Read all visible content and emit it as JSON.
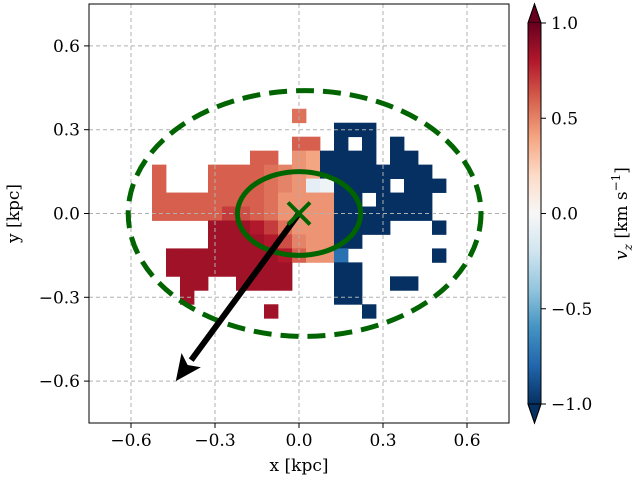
{
  "chart_data": {
    "type": "heatmap",
    "xlabel": "x [kpc]",
    "ylabel": "y [kpc]",
    "xlim": [
      -0.75,
      0.75
    ],
    "ylim": [
      -0.75,
      0.75
    ],
    "xticks": [
      -0.6,
      -0.3,
      0.0,
      0.3,
      0.6
    ],
    "yticks": [
      -0.6,
      -0.3,
      0.0,
      0.3,
      0.6
    ],
    "xtick_labels": [
      "−0.6",
      "−0.3",
      "0.0",
      "0.3",
      "0.6"
    ],
    "ytick_labels": [
      "−0.6",
      "−0.3",
      "0.0",
      "0.3",
      "0.6"
    ],
    "grid": true,
    "bin_size": 0.05,
    "colorbar": {
      "label": "v_z [km s⁻¹]",
      "label_main": "v",
      "label_sub": "z",
      "label_units": " [km s",
      "label_exp": "−1",
      "label_close": "]",
      "vmin": -1.0,
      "vmax": 1.0,
      "ticks": [
        -1.0,
        -0.5,
        0.0,
        0.5,
        1.0
      ],
      "tick_labels": [
        "−1.0",
        "−0.5",
        "0.0",
        "0.5",
        "1.0"
      ],
      "colormap": "RdBu_r",
      "extend": "both"
    },
    "cells": [
      {
        "x": 0.0,
        "y": 0.35,
        "v": 0.55
      },
      {
        "x": 0.15,
        "y": 0.3,
        "v": -1.0
      },
      {
        "x": 0.2,
        "y": 0.3,
        "v": -1.0
      },
      {
        "x": 0.25,
        "y": 0.3,
        "v": -1.0
      },
      {
        "x": 0.0,
        "y": 0.25,
        "v": 0.6
      },
      {
        "x": 0.05,
        "y": 0.25,
        "v": 0.6
      },
      {
        "x": 0.15,
        "y": 0.25,
        "v": -1.0
      },
      {
        "x": 0.25,
        "y": 0.25,
        "v": -1.0
      },
      {
        "x": 0.35,
        "y": 0.25,
        "v": -1.0
      },
      {
        "x": -0.15,
        "y": 0.2,
        "v": 0.6
      },
      {
        "x": -0.1,
        "y": 0.2,
        "v": 0.6
      },
      {
        "x": 0.0,
        "y": 0.2,
        "v": 0.45
      },
      {
        "x": 0.05,
        "y": 0.2,
        "v": 0.4
      },
      {
        "x": 0.1,
        "y": 0.2,
        "v": -1.0
      },
      {
        "x": 0.15,
        "y": 0.2,
        "v": -1.0
      },
      {
        "x": 0.2,
        "y": 0.2,
        "v": -1.0
      },
      {
        "x": 0.25,
        "y": 0.2,
        "v": -1.0
      },
      {
        "x": 0.35,
        "y": 0.2,
        "v": -1.0
      },
      {
        "x": 0.4,
        "y": 0.2,
        "v": -1.0
      },
      {
        "x": -0.5,
        "y": 0.15,
        "v": 0.6
      },
      {
        "x": -0.3,
        "y": 0.15,
        "v": 0.6
      },
      {
        "x": -0.25,
        "y": 0.15,
        "v": 0.6
      },
      {
        "x": -0.2,
        "y": 0.15,
        "v": 0.6
      },
      {
        "x": -0.15,
        "y": 0.15,
        "v": 0.6
      },
      {
        "x": -0.1,
        "y": 0.15,
        "v": 0.55
      },
      {
        "x": -0.05,
        "y": 0.15,
        "v": 0.5
      },
      {
        "x": 0.0,
        "y": 0.15,
        "v": 0.45
      },
      {
        "x": 0.05,
        "y": 0.15,
        "v": 0.4
      },
      {
        "x": 0.1,
        "y": 0.15,
        "v": -1.0
      },
      {
        "x": 0.15,
        "y": 0.15,
        "v": -1.0
      },
      {
        "x": 0.2,
        "y": 0.15,
        "v": -1.0
      },
      {
        "x": 0.25,
        "y": 0.15,
        "v": -1.0
      },
      {
        "x": 0.3,
        "y": 0.15,
        "v": -1.0
      },
      {
        "x": 0.35,
        "y": 0.15,
        "v": -1.0
      },
      {
        "x": 0.4,
        "y": 0.15,
        "v": -1.0
      },
      {
        "x": 0.45,
        "y": 0.15,
        "v": -1.0
      },
      {
        "x": -0.5,
        "y": 0.1,
        "v": 0.6
      },
      {
        "x": -0.3,
        "y": 0.1,
        "v": 0.6
      },
      {
        "x": -0.25,
        "y": 0.1,
        "v": 0.6
      },
      {
        "x": -0.2,
        "y": 0.1,
        "v": 0.6
      },
      {
        "x": -0.15,
        "y": 0.1,
        "v": 0.6
      },
      {
        "x": -0.1,
        "y": 0.1,
        "v": 0.55
      },
      {
        "x": -0.05,
        "y": 0.1,
        "v": 0.5
      },
      {
        "x": 0.0,
        "y": 0.1,
        "v": 0.45
      },
      {
        "x": 0.05,
        "y": 0.1,
        "v": -0.1
      },
      {
        "x": 0.1,
        "y": 0.1,
        "v": -0.05
      },
      {
        "x": 0.15,
        "y": 0.1,
        "v": -1.0
      },
      {
        "x": 0.2,
        "y": 0.1,
        "v": -1.0
      },
      {
        "x": 0.25,
        "y": 0.1,
        "v": -1.0
      },
      {
        "x": 0.3,
        "y": 0.1,
        "v": -1.0
      },
      {
        "x": 0.4,
        "y": 0.1,
        "v": -1.0
      },
      {
        "x": 0.45,
        "y": 0.1,
        "v": -1.0
      },
      {
        "x": 0.5,
        "y": 0.1,
        "v": -1.0
      },
      {
        "x": -0.5,
        "y": 0.05,
        "v": 0.6
      },
      {
        "x": -0.45,
        "y": 0.05,
        "v": 0.6
      },
      {
        "x": -0.4,
        "y": 0.05,
        "v": 0.6
      },
      {
        "x": -0.35,
        "y": 0.05,
        "v": 0.6
      },
      {
        "x": -0.3,
        "y": 0.05,
        "v": 0.6
      },
      {
        "x": -0.25,
        "y": 0.05,
        "v": 0.6
      },
      {
        "x": -0.2,
        "y": 0.05,
        "v": 0.6
      },
      {
        "x": -0.15,
        "y": 0.05,
        "v": 0.6
      },
      {
        "x": -0.1,
        "y": 0.05,
        "v": 0.55
      },
      {
        "x": -0.05,
        "y": 0.05,
        "v": 0.45
      },
      {
        "x": 0.0,
        "y": 0.05,
        "v": 0.45
      },
      {
        "x": 0.05,
        "y": 0.05,
        "v": 0.45
      },
      {
        "x": 0.1,
        "y": 0.05,
        "v": 0.45
      },
      {
        "x": 0.15,
        "y": 0.05,
        "v": -1.0
      },
      {
        "x": 0.2,
        "y": 0.05,
        "v": -1.0
      },
      {
        "x": 0.3,
        "y": 0.05,
        "v": -1.0
      },
      {
        "x": 0.35,
        "y": 0.05,
        "v": -1.0
      },
      {
        "x": 0.4,
        "y": 0.05,
        "v": -1.0
      },
      {
        "x": 0.45,
        "y": 0.05,
        "v": -1.0
      },
      {
        "x": -0.5,
        "y": 0.0,
        "v": 0.6
      },
      {
        "x": -0.45,
        "y": 0.0,
        "v": 0.6
      },
      {
        "x": -0.4,
        "y": 0.0,
        "v": 0.6
      },
      {
        "x": -0.35,
        "y": 0.0,
        "v": 0.6
      },
      {
        "x": -0.3,
        "y": 0.0,
        "v": 0.6
      },
      {
        "x": -0.25,
        "y": 0.0,
        "v": 0.7
      },
      {
        "x": -0.2,
        "y": 0.0,
        "v": 0.65
      },
      {
        "x": -0.15,
        "y": 0.0,
        "v": 0.6
      },
      {
        "x": -0.1,
        "y": 0.0,
        "v": 0.55
      },
      {
        "x": -0.05,
        "y": 0.0,
        "v": 0.45
      },
      {
        "x": 0.0,
        "y": 0.0,
        "v": 0.45
      },
      {
        "x": 0.05,
        "y": 0.0,
        "v": 0.45
      },
      {
        "x": 0.1,
        "y": 0.0,
        "v": 0.45
      },
      {
        "x": 0.15,
        "y": 0.0,
        "v": -1.0
      },
      {
        "x": 0.2,
        "y": 0.0,
        "v": -1.0
      },
      {
        "x": 0.25,
        "y": 0.0,
        "v": -1.0
      },
      {
        "x": 0.3,
        "y": 0.0,
        "v": -1.0
      },
      {
        "x": 0.35,
        "y": 0.0,
        "v": -1.0
      },
      {
        "x": 0.4,
        "y": 0.0,
        "v": -1.0
      },
      {
        "x": 0.45,
        "y": 0.0,
        "v": -1.0
      },
      {
        "x": -0.3,
        "y": -0.05,
        "v": 0.85
      },
      {
        "x": -0.25,
        "y": -0.05,
        "v": 0.85
      },
      {
        "x": -0.2,
        "y": -0.05,
        "v": 0.85
      },
      {
        "x": -0.15,
        "y": -0.05,
        "v": 0.8
      },
      {
        "x": -0.1,
        "y": -0.05,
        "v": 0.7
      },
      {
        "x": -0.05,
        "y": -0.05,
        "v": 0.55
      },
      {
        "x": 0.0,
        "y": -0.05,
        "v": 0.45
      },
      {
        "x": 0.05,
        "y": -0.05,
        "v": 0.45
      },
      {
        "x": 0.1,
        "y": -0.05,
        "v": 0.45
      },
      {
        "x": 0.15,
        "y": -0.05,
        "v": -1.0
      },
      {
        "x": 0.2,
        "y": -0.05,
        "v": -1.0
      },
      {
        "x": 0.25,
        "y": -0.05,
        "v": -1.0
      },
      {
        "x": 0.3,
        "y": -0.05,
        "v": -1.0
      },
      {
        "x": 0.5,
        "y": -0.05,
        "v": -1.0
      },
      {
        "x": -0.3,
        "y": -0.1,
        "v": 0.85
      },
      {
        "x": -0.25,
        "y": -0.1,
        "v": 0.85
      },
      {
        "x": -0.2,
        "y": -0.1,
        "v": 0.85
      },
      {
        "x": -0.15,
        "y": -0.1,
        "v": 0.85
      },
      {
        "x": -0.1,
        "y": -0.1,
        "v": 0.8
      },
      {
        "x": -0.05,
        "y": -0.1,
        "v": 0.65
      },
      {
        "x": 0.0,
        "y": -0.1,
        "v": 0.5
      },
      {
        "x": 0.05,
        "y": -0.1,
        "v": 0.45
      },
      {
        "x": 0.1,
        "y": -0.1,
        "v": 0.45
      },
      {
        "x": 0.15,
        "y": -0.1,
        "v": -1.0
      },
      {
        "x": 0.2,
        "y": -0.1,
        "v": -1.0
      },
      {
        "x": -0.45,
        "y": -0.15,
        "v": 0.85
      },
      {
        "x": -0.4,
        "y": -0.15,
        "v": 0.85
      },
      {
        "x": -0.35,
        "y": -0.15,
        "v": 0.85
      },
      {
        "x": -0.3,
        "y": -0.15,
        "v": 0.85
      },
      {
        "x": -0.25,
        "y": -0.15,
        "v": 0.85
      },
      {
        "x": -0.2,
        "y": -0.15,
        "v": 0.85
      },
      {
        "x": -0.15,
        "y": -0.15,
        "v": 0.85
      },
      {
        "x": -0.1,
        "y": -0.15,
        "v": 0.85
      },
      {
        "x": -0.05,
        "y": -0.15,
        "v": 0.8
      },
      {
        "x": 0.0,
        "y": -0.15,
        "v": 0.6
      },
      {
        "x": 0.05,
        "y": -0.15,
        "v": 0.45
      },
      {
        "x": 0.1,
        "y": -0.15,
        "v": 0.45
      },
      {
        "x": 0.15,
        "y": -0.15,
        "v": -0.75
      },
      {
        "x": 0.5,
        "y": -0.15,
        "v": -1.0
      },
      {
        "x": -0.45,
        "y": -0.2,
        "v": 0.85
      },
      {
        "x": -0.4,
        "y": -0.2,
        "v": 0.85
      },
      {
        "x": -0.35,
        "y": -0.2,
        "v": 0.85
      },
      {
        "x": -0.3,
        "y": -0.2,
        "v": 0.85
      },
      {
        "x": -0.25,
        "y": -0.2,
        "v": 0.85
      },
      {
        "x": -0.2,
        "y": -0.2,
        "v": 0.85
      },
      {
        "x": -0.15,
        "y": -0.2,
        "v": 0.85
      },
      {
        "x": -0.1,
        "y": -0.2,
        "v": 0.85
      },
      {
        "x": -0.05,
        "y": -0.2,
        "v": 0.85
      },
      {
        "x": 0.15,
        "y": -0.2,
        "v": -1.0
      },
      {
        "x": 0.2,
        "y": -0.2,
        "v": -1.0
      },
      {
        "x": -0.4,
        "y": -0.25,
        "v": 0.85
      },
      {
        "x": -0.35,
        "y": -0.25,
        "v": 0.85
      },
      {
        "x": -0.2,
        "y": -0.25,
        "v": 0.85
      },
      {
        "x": -0.15,
        "y": -0.25,
        "v": 0.85
      },
      {
        "x": -0.1,
        "y": -0.25,
        "v": 0.85
      },
      {
        "x": -0.05,
        "y": -0.25,
        "v": 0.85
      },
      {
        "x": 0.15,
        "y": -0.25,
        "v": -1.0
      },
      {
        "x": 0.2,
        "y": -0.25,
        "v": -1.0
      },
      {
        "x": 0.35,
        "y": -0.25,
        "v": -1.0
      },
      {
        "x": 0.4,
        "y": -0.25,
        "v": -1.0
      },
      {
        "x": -0.4,
        "y": -0.3,
        "v": 0.85
      },
      {
        "x": 0.15,
        "y": -0.3,
        "v": -1.0
      },
      {
        "x": 0.2,
        "y": -0.3,
        "v": -1.0
      },
      {
        "x": -0.1,
        "y": -0.35,
        "v": 0.85
      },
      {
        "x": 0.25,
        "y": -0.35,
        "v": -1.0
      }
    ],
    "overlays": {
      "outer_ellipse": {
        "cx": 0.02,
        "cy": 0.0,
        "rx": 0.63,
        "ry": 0.44,
        "style": "dashed",
        "color": "#006400"
      },
      "inner_ellipse": {
        "cx": 0.0,
        "cy": 0.0,
        "rx": 0.22,
        "ry": 0.15,
        "style": "solid",
        "color": "#006400"
      },
      "center_marker": {
        "x": 0.0,
        "y": 0.0,
        "marker": "x",
        "color": "#006400"
      },
      "arrow": {
        "x0": 0.0,
        "y0": 0.0,
        "x1": -0.44,
        "y1": -0.6,
        "color": "#000000"
      }
    }
  }
}
